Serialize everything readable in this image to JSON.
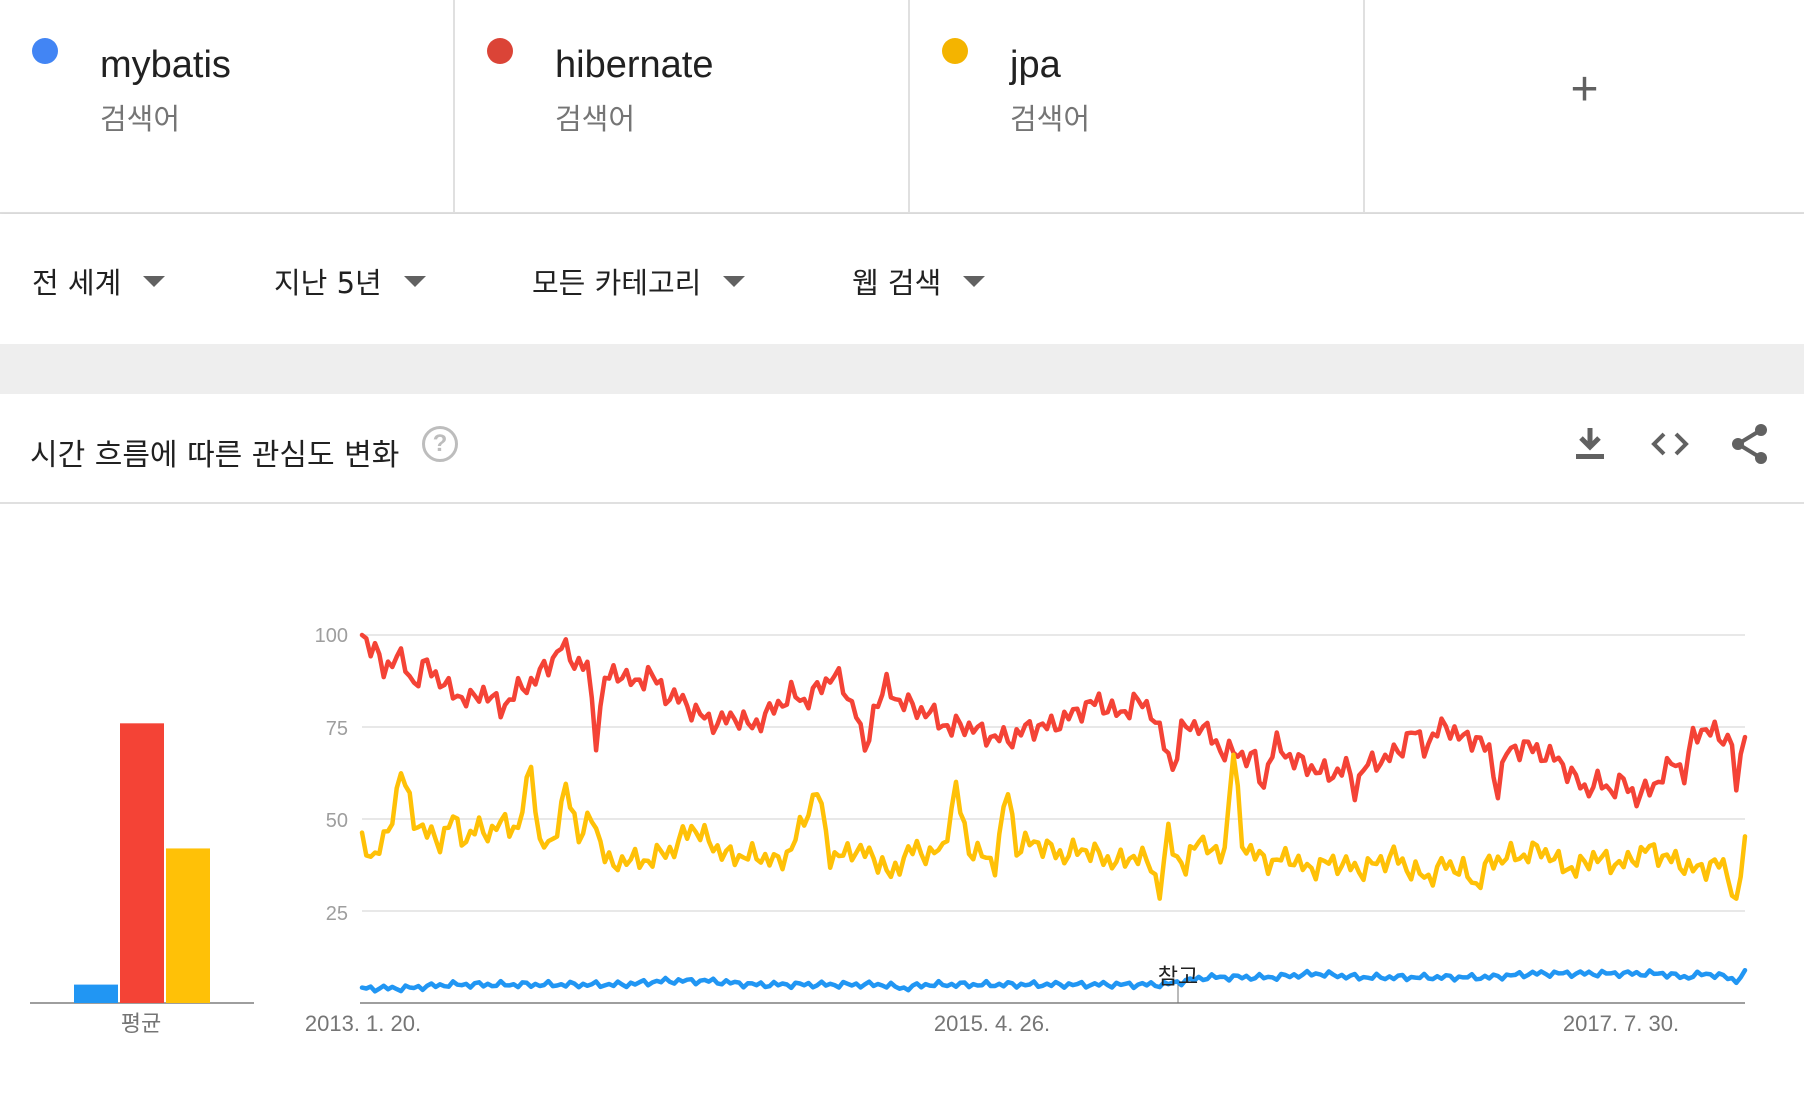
{
  "terms": [
    {
      "name": "mybatis",
      "type": "검색어",
      "color": "#4285f4"
    },
    {
      "name": "hibernate",
      "type": "검색어",
      "color": "#db4437"
    },
    {
      "name": "jpa",
      "type": "검색어",
      "color": "#f4b400"
    }
  ],
  "add_term": "+",
  "filters": {
    "region": "전 세계",
    "time": "지난 5년",
    "category": "모든 카테고리",
    "search_type": "웹 검색"
  },
  "card": {
    "title": "시간 흐름에 따른 관심도 변화",
    "help": "?",
    "icons": [
      "download-icon",
      "embed-code-icon",
      "share-icon"
    ]
  },
  "chart_data": {
    "type": "line",
    "title": "",
    "ylim": [
      0,
      100
    ],
    "yticks": [
      "100",
      "75",
      "50",
      "25"
    ],
    "xticks": [
      "2013. 1. 20.",
      "2015. 4. 26.",
      "2017. 7. 30."
    ],
    "note_label": "참고",
    "grid": true,
    "averages": {
      "label": "평균",
      "values": [
        {
          "name": "mybatis",
          "value": 5
        },
        {
          "name": "hibernate",
          "value": 76
        },
        {
          "name": "jpa",
          "value": 42
        }
      ]
    },
    "series": [
      {
        "name": "hibernate",
        "color": "#f44336",
        "anchors": [
          [
            0,
            100
          ],
          [
            3,
            96
          ],
          [
            5,
            90
          ],
          [
            8,
            95
          ],
          [
            12,
            87
          ],
          [
            15,
            92
          ],
          [
            20,
            85
          ],
          [
            25,
            82
          ],
          [
            28,
            85
          ],
          [
            32,
            80
          ],
          [
            36,
            85
          ],
          [
            40,
            88
          ],
          [
            43,
            92
          ],
          [
            46,
            97
          ],
          [
            49,
            93
          ],
          [
            52,
            91
          ],
          [
            54,
            72
          ],
          [
            56,
            88
          ],
          [
            60,
            90
          ],
          [
            63,
            86
          ],
          [
            66,
            90
          ],
          [
            70,
            84
          ],
          [
            74,
            82
          ],
          [
            78,
            78
          ],
          [
            82,
            76
          ],
          [
            86,
            78
          ],
          [
            90,
            75
          ],
          [
            95,
            80
          ],
          [
            99,
            84
          ],
          [
            102,
            82
          ],
          [
            106,
            86
          ],
          [
            109,
            90
          ],
          [
            111,
            85
          ],
          [
            114,
            80
          ],
          [
            116,
            67
          ],
          [
            118,
            80
          ],
          [
            121,
            86
          ],
          [
            124,
            82
          ],
          [
            128,
            80
          ],
          [
            132,
            78
          ],
          [
            136,
            74
          ],
          [
            138,
            76
          ],
          [
            142,
            74
          ],
          [
            146,
            72
          ],
          [
            150,
            72
          ],
          [
            154,
            75
          ],
          [
            158,
            75
          ],
          [
            162,
            77
          ],
          [
            166,
            80
          ],
          [
            170,
            82
          ],
          [
            175,
            78
          ],
          [
            178,
            82
          ],
          [
            182,
            80
          ],
          [
            185,
            70
          ],
          [
            187,
            64
          ],
          [
            189,
            74
          ],
          [
            193,
            76
          ],
          [
            196,
            72
          ],
          [
            199,
            68
          ],
          [
            202,
            68
          ],
          [
            206,
            66
          ],
          [
            208,
            58
          ],
          [
            209,
            66
          ],
          [
            211,
            70
          ],
          [
            215,
            66
          ],
          [
            219,
            64
          ],
          [
            223,
            62
          ],
          [
            227,
            64
          ],
          [
            229,
            58
          ],
          [
            231,
            64
          ],
          [
            235,
            66
          ],
          [
            239,
            68
          ],
          [
            242,
            74
          ],
          [
            245,
            70
          ],
          [
            247,
            72
          ],
          [
            250,
            76
          ],
          [
            253,
            72
          ],
          [
            257,
            72
          ],
          [
            260,
            68
          ],
          [
            262,
            58
          ],
          [
            264,
            68
          ],
          [
            268,
            70
          ],
          [
            272,
            68
          ],
          [
            276,
            66
          ],
          [
            279,
            62
          ],
          [
            282,
            58
          ],
          [
            285,
            60
          ],
          [
            288,
            58
          ],
          [
            291,
            60
          ],
          [
            294,
            56
          ],
          [
            297,
            58
          ],
          [
            300,
            62
          ],
          [
            303,
            66
          ],
          [
            305,
            62
          ],
          [
            307,
            72
          ],
          [
            310,
            75
          ],
          [
            313,
            72
          ],
          [
            316,
            72
          ],
          [
            317,
            56
          ],
          [
            319,
            75
          ]
        ]
      },
      {
        "name": "jpa",
        "color": "#ffc107",
        "anchors": [
          [
            0,
            43
          ],
          [
            3,
            40
          ],
          [
            6,
            46
          ],
          [
            9,
            63
          ],
          [
            12,
            50
          ],
          [
            15,
            46
          ],
          [
            18,
            44
          ],
          [
            21,
            50
          ],
          [
            24,
            44
          ],
          [
            27,
            48
          ],
          [
            30,
            46
          ],
          [
            33,
            50
          ],
          [
            36,
            46
          ],
          [
            39,
            66
          ],
          [
            41,
            42
          ],
          [
            44,
            44
          ],
          [
            47,
            58
          ],
          [
            50,
            46
          ],
          [
            53,
            50
          ],
          [
            55,
            44
          ],
          [
            58,
            36
          ],
          [
            61,
            40
          ],
          [
            64,
            38
          ],
          [
            68,
            40
          ],
          [
            72,
            42
          ],
          [
            76,
            48
          ],
          [
            80,
            44
          ],
          [
            84,
            40
          ],
          [
            88,
            40
          ],
          [
            92,
            40
          ],
          [
            96,
            38
          ],
          [
            99,
            42
          ],
          [
            102,
            50
          ],
          [
            105,
            58
          ],
          [
            108,
            40
          ],
          [
            111,
            40
          ],
          [
            114,
            42
          ],
          [
            117,
            40
          ],
          [
            120,
            38
          ],
          [
            122,
            34
          ],
          [
            125,
            40
          ],
          [
            128,
            42
          ],
          [
            131,
            40
          ],
          [
            134,
            42
          ],
          [
            137,
            58
          ],
          [
            140,
            42
          ],
          [
            143,
            40
          ],
          [
            146,
            38
          ],
          [
            149,
            58
          ],
          [
            151,
            42
          ],
          [
            155,
            44
          ],
          [
            158,
            42
          ],
          [
            162,
            40
          ],
          [
            166,
            42
          ],
          [
            170,
            40
          ],
          [
            174,
            38
          ],
          [
            178,
            40
          ],
          [
            182,
            38
          ],
          [
            184,
            30
          ],
          [
            186,
            46
          ],
          [
            188,
            40
          ],
          [
            190,
            36
          ],
          [
            193,
            46
          ],
          [
            196,
            40
          ],
          [
            199,
            42
          ],
          [
            201,
            68
          ],
          [
            203,
            44
          ],
          [
            206,
            40
          ],
          [
            210,
            38
          ],
          [
            214,
            40
          ],
          [
            218,
            36
          ],
          [
            222,
            38
          ],
          [
            226,
            38
          ],
          [
            230,
            36
          ],
          [
            234,
            38
          ],
          [
            238,
            40
          ],
          [
            242,
            36
          ],
          [
            246,
            34
          ],
          [
            250,
            38
          ],
          [
            254,
            36
          ],
          [
            257,
            32
          ],
          [
            260,
            38
          ],
          [
            264,
            40
          ],
          [
            268,
            40
          ],
          [
            272,
            42
          ],
          [
            276,
            38
          ],
          [
            280,
            36
          ],
          [
            284,
            40
          ],
          [
            288,
            38
          ],
          [
            292,
            38
          ],
          [
            296,
            42
          ],
          [
            300,
            40
          ],
          [
            304,
            38
          ],
          [
            308,
            36
          ],
          [
            312,
            38
          ],
          [
            315,
            36
          ],
          [
            317,
            26
          ],
          [
            319,
            44
          ]
        ]
      },
      {
        "name": "mybatis",
        "color": "#2196f3",
        "anchors": [
          [
            0,
            4
          ],
          [
            10,
            4
          ],
          [
            20,
            5
          ],
          [
            30,
            5
          ],
          [
            40,
            5
          ],
          [
            50,
            5
          ],
          [
            60,
            5
          ],
          [
            70,
            6
          ],
          [
            80,
            6
          ],
          [
            90,
            5
          ],
          [
            100,
            5
          ],
          [
            110,
            5
          ],
          [
            120,
            5
          ],
          [
            125,
            4
          ],
          [
            130,
            5
          ],
          [
            140,
            5
          ],
          [
            150,
            5
          ],
          [
            160,
            5
          ],
          [
            170,
            5
          ],
          [
            180,
            5
          ],
          [
            185,
            5
          ],
          [
            190,
            6
          ],
          [
            195,
            7
          ],
          [
            200,
            7
          ],
          [
            210,
            7
          ],
          [
            220,
            8
          ],
          [
            230,
            7
          ],
          [
            240,
            7
          ],
          [
            250,
            7
          ],
          [
            260,
            7
          ],
          [
            270,
            8
          ],
          [
            280,
            8
          ],
          [
            290,
            8
          ],
          [
            300,
            8
          ],
          [
            305,
            7
          ],
          [
            310,
            8
          ],
          [
            315,
            7
          ],
          [
            317,
            6
          ],
          [
            319,
            8
          ]
        ]
      }
    ]
  }
}
